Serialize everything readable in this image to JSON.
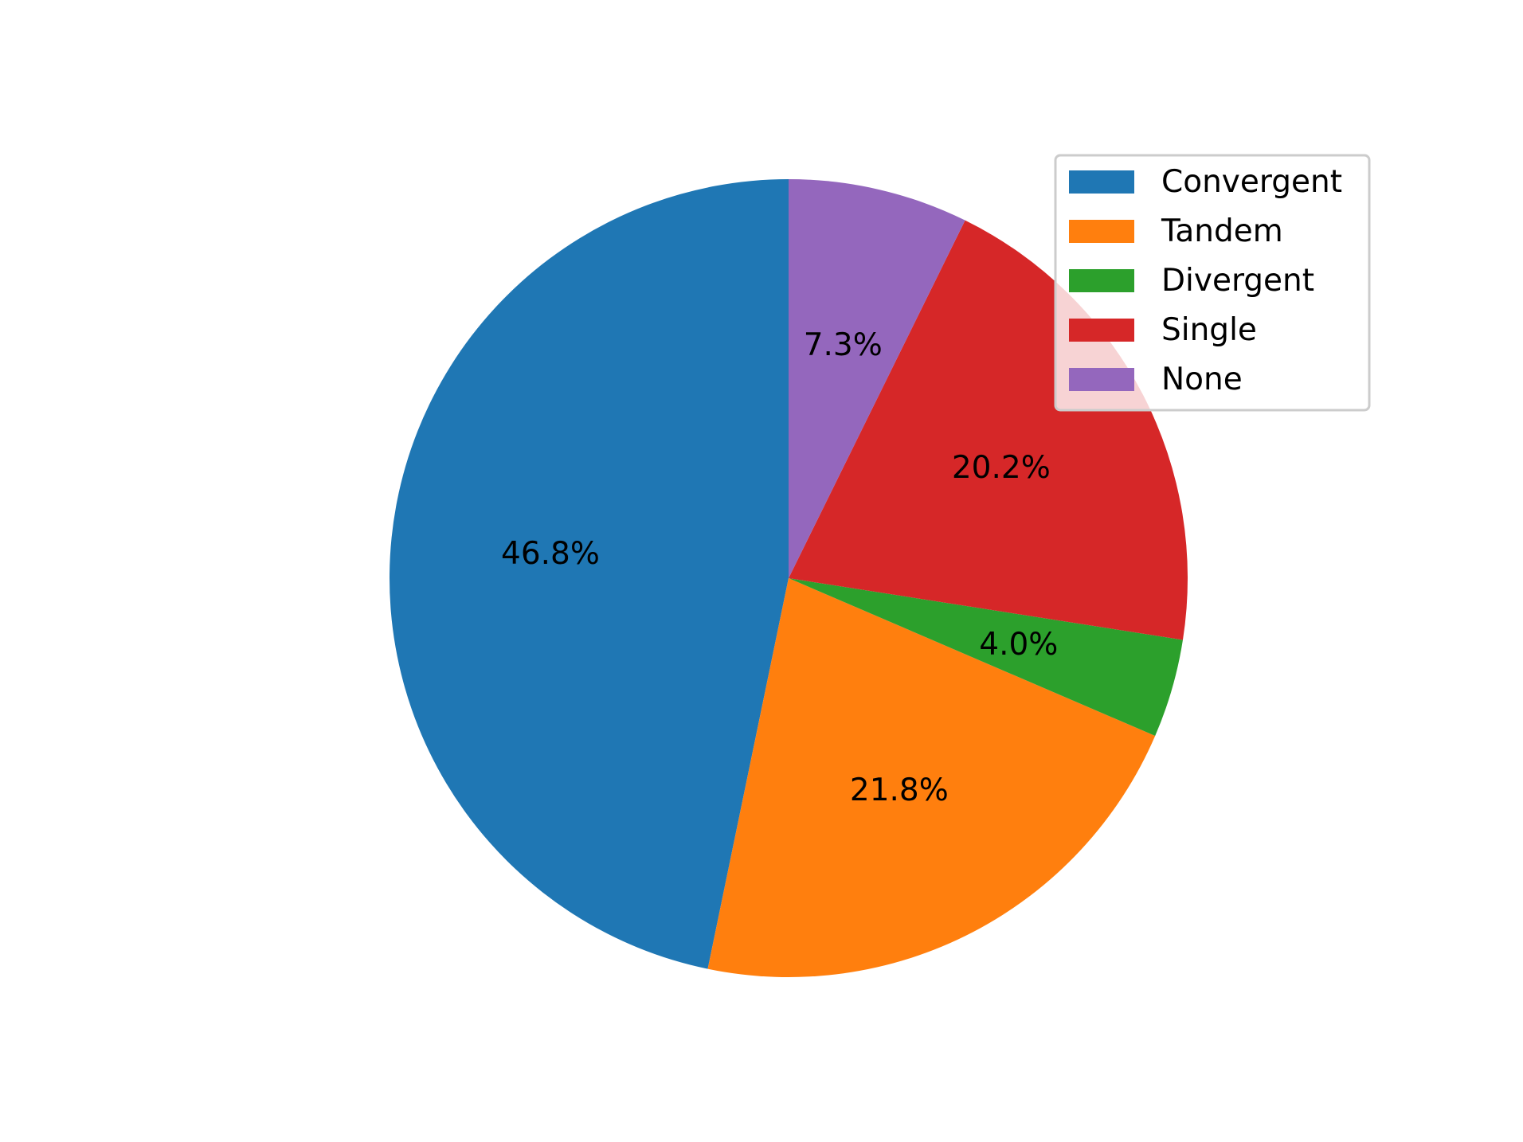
{
  "chart_data": {
    "type": "pie",
    "title": "",
    "start_angle_deg": 90,
    "direction": "counterclockwise",
    "slices": [
      {
        "label": "Convergent",
        "value": 46.8,
        "pct_label": "46.8%",
        "color": "#1f77b4"
      },
      {
        "label": "Tandem",
        "value": 21.8,
        "pct_label": "21.8%",
        "color": "#ff7f0e"
      },
      {
        "label": "Divergent",
        "value": 4.0,
        "pct_label": "4.0%",
        "color": "#2ca02c"
      },
      {
        "label": "Single",
        "value": 20.2,
        "pct_label": "20.2%",
        "color": "#d62728"
      },
      {
        "label": "None",
        "value": 7.3,
        "pct_label": "7.3%",
        "color": "#9467bd"
      }
    ],
    "legend": {
      "position": "upper-right",
      "entries": [
        "Convergent",
        "Tandem",
        "Divergent",
        "Single",
        "None"
      ]
    }
  }
}
